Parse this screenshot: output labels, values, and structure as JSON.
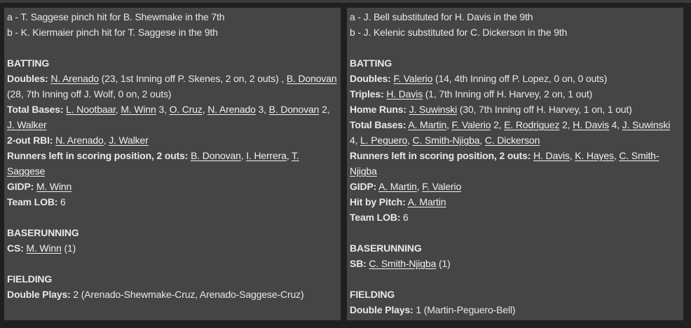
{
  "panels": [
    {
      "id": "away",
      "lines": [
        [
          [
            "a - T. Saggese pinch hit for B. Shewmake in the 7th",
            ""
          ]
        ],
        [
          [
            "b - K. Kiermaier pinch hit for T. Saggese in the 9th",
            ""
          ]
        ],
        [],
        [
          [
            "BATTING",
            "b"
          ]
        ],
        [
          [
            "Doubles:",
            "b"
          ],
          [
            " ",
            ""
          ],
          [
            "N. Arenado",
            "l"
          ],
          [
            " (23, 1st Inning off P. Skenes, 2 on, 2 outs) , ",
            ""
          ],
          [
            "B. Donovan",
            "l"
          ],
          [
            " (28, 7th Inning off J. Wolf, 0 on, 2 outs)",
            ""
          ]
        ],
        [
          [
            "Total Bases:",
            "b"
          ],
          [
            " ",
            ""
          ],
          [
            "L. Nootbaar",
            "l"
          ],
          [
            ", ",
            ""
          ],
          [
            "M. Winn",
            "l"
          ],
          [
            " 3, ",
            ""
          ],
          [
            "O. Cruz",
            "l"
          ],
          [
            ", ",
            ""
          ],
          [
            "N. Arenado",
            "l"
          ],
          [
            " 3, ",
            ""
          ],
          [
            "B. Donovan",
            "l"
          ],
          [
            " 2, ",
            ""
          ],
          [
            "J. Walker",
            "l"
          ]
        ],
        [
          [
            "2-out RBI:",
            "b"
          ],
          [
            " ",
            ""
          ],
          [
            "N. Arenado",
            "l"
          ],
          [
            ", ",
            ""
          ],
          [
            "J. Walker",
            "l"
          ]
        ],
        [
          [
            "Runners left in scoring position, 2 outs:",
            "b"
          ],
          [
            " ",
            ""
          ],
          [
            "B. Donovan",
            "l"
          ],
          [
            ", ",
            ""
          ],
          [
            "I. Herrera",
            "l"
          ],
          [
            ", ",
            ""
          ],
          [
            "T. Saggese",
            "l"
          ]
        ],
        [
          [
            "GIDP:",
            "b"
          ],
          [
            " ",
            ""
          ],
          [
            "M. Winn",
            "l"
          ]
        ],
        [
          [
            "Team LOB:",
            "b"
          ],
          [
            " 6",
            ""
          ]
        ],
        [],
        [
          [
            "BASERUNNING",
            "b"
          ]
        ],
        [
          [
            "CS:",
            "b"
          ],
          [
            " ",
            ""
          ],
          [
            "M. Winn",
            "l"
          ],
          [
            " (1)",
            ""
          ]
        ],
        [],
        [
          [
            "FIELDING",
            "b"
          ]
        ],
        [
          [
            "Double Plays:",
            "b"
          ],
          [
            " 2 (Arenado-Shewmake-Cruz, Arenado-Saggese-Cruz)",
            ""
          ]
        ]
      ]
    },
    {
      "id": "home",
      "lines": [
        [
          [
            "a - J. Bell substituted for H. Davis in the 9th",
            ""
          ]
        ],
        [
          [
            "b - J. Kelenic substituted for C. Dickerson in the 9th",
            ""
          ]
        ],
        [],
        [
          [
            "BATTING",
            "b"
          ]
        ],
        [
          [
            "Doubles:",
            "b"
          ],
          [
            " ",
            ""
          ],
          [
            "F. Valerio",
            "l"
          ],
          [
            " (14, 4th Inning off P. Lopez, 0 on, 0 outs)",
            ""
          ]
        ],
        [
          [
            "Triples:",
            "b"
          ],
          [
            " ",
            ""
          ],
          [
            "H. Davis",
            "l"
          ],
          [
            " (1, 7th Inning off H. Harvey, 2 on, 1 out)",
            ""
          ]
        ],
        [
          [
            "Home Runs:",
            "b"
          ],
          [
            " ",
            ""
          ],
          [
            "J. Suwinski",
            "l"
          ],
          [
            " (30, 7th Inning off H. Harvey, 1 on, 1 out)",
            ""
          ]
        ],
        [
          [
            "Total Bases:",
            "b"
          ],
          [
            " ",
            ""
          ],
          [
            "A. Martin",
            "l"
          ],
          [
            ", ",
            ""
          ],
          [
            "F. Valerio",
            "l"
          ],
          [
            " 2, ",
            ""
          ],
          [
            "E. Rodriguez",
            "l"
          ],
          [
            " 2, ",
            ""
          ],
          [
            "H. Davis",
            "l"
          ],
          [
            " 4, ",
            ""
          ],
          [
            "J. Suwinski",
            "l"
          ],
          [
            " 4, ",
            ""
          ],
          [
            "L. Peguero",
            "l"
          ],
          [
            ", ",
            ""
          ],
          [
            "C. Smith-Njigba",
            "l"
          ],
          [
            ", ",
            ""
          ],
          [
            "C. Dickerson",
            "l"
          ]
        ],
        [
          [
            "Runners left in scoring position, 2 outs:",
            "b"
          ],
          [
            " ",
            ""
          ],
          [
            "H. Davis",
            "l"
          ],
          [
            ", ",
            ""
          ],
          [
            "K. Hayes",
            "l"
          ],
          [
            ", ",
            ""
          ],
          [
            "C. Smith-Njigba",
            "l"
          ]
        ],
        [
          [
            "GIDP:",
            "b"
          ],
          [
            " ",
            ""
          ],
          [
            "A. Martin",
            "l"
          ],
          [
            ", ",
            ""
          ],
          [
            "F. Valerio",
            "l"
          ]
        ],
        [
          [
            "Hit by Pitch:",
            "b"
          ],
          [
            " ",
            ""
          ],
          [
            "A. Martin",
            "l"
          ]
        ],
        [
          [
            "Team LOB:",
            "b"
          ],
          [
            " 6",
            ""
          ]
        ],
        [],
        [
          [
            "BASERUNNING",
            "b"
          ]
        ],
        [
          [
            "SB:",
            "b"
          ],
          [
            " ",
            ""
          ],
          [
            "C. Smith-Njigba",
            "l"
          ],
          [
            " (1)",
            ""
          ]
        ],
        [],
        [
          [
            "FIELDING",
            "b"
          ]
        ],
        [
          [
            "Double Plays:",
            "b"
          ],
          [
            " 1 (Martin-Peguero-Bell)",
            ""
          ]
        ]
      ]
    }
  ]
}
